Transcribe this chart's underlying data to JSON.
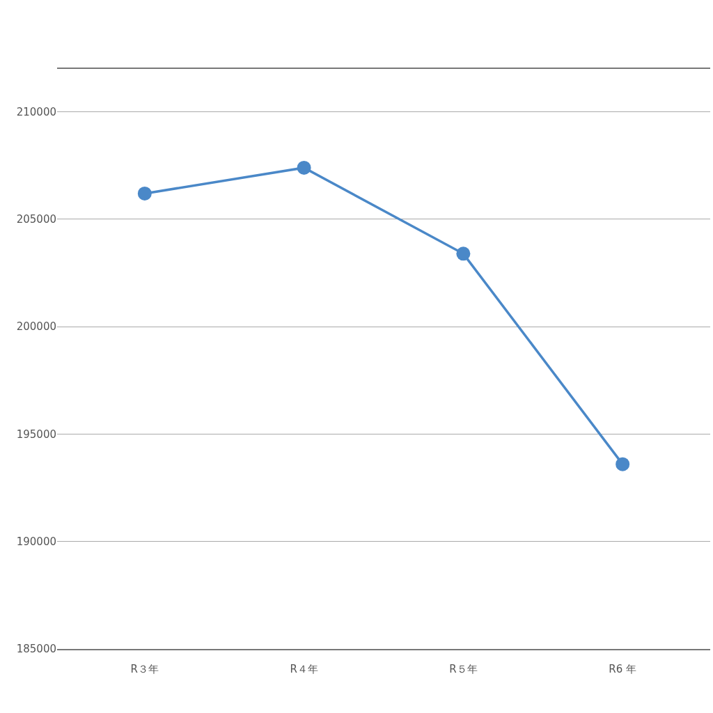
{
  "chart_data": {
    "type": "line",
    "categories": [
      "R３年",
      "R４年",
      "R５年",
      "R6 年"
    ],
    "series": [
      {
        "color": "#4a88c8",
        "values": [
          206200,
          207400,
          203400,
          193600
        ]
      }
    ],
    "ylim": [
      185000,
      212000
    ],
    "yticks": [
      185000,
      190000,
      195000,
      200000,
      205000,
      210000
    ],
    "grid": "y",
    "marker": "circle",
    "line_style": "solid"
  }
}
